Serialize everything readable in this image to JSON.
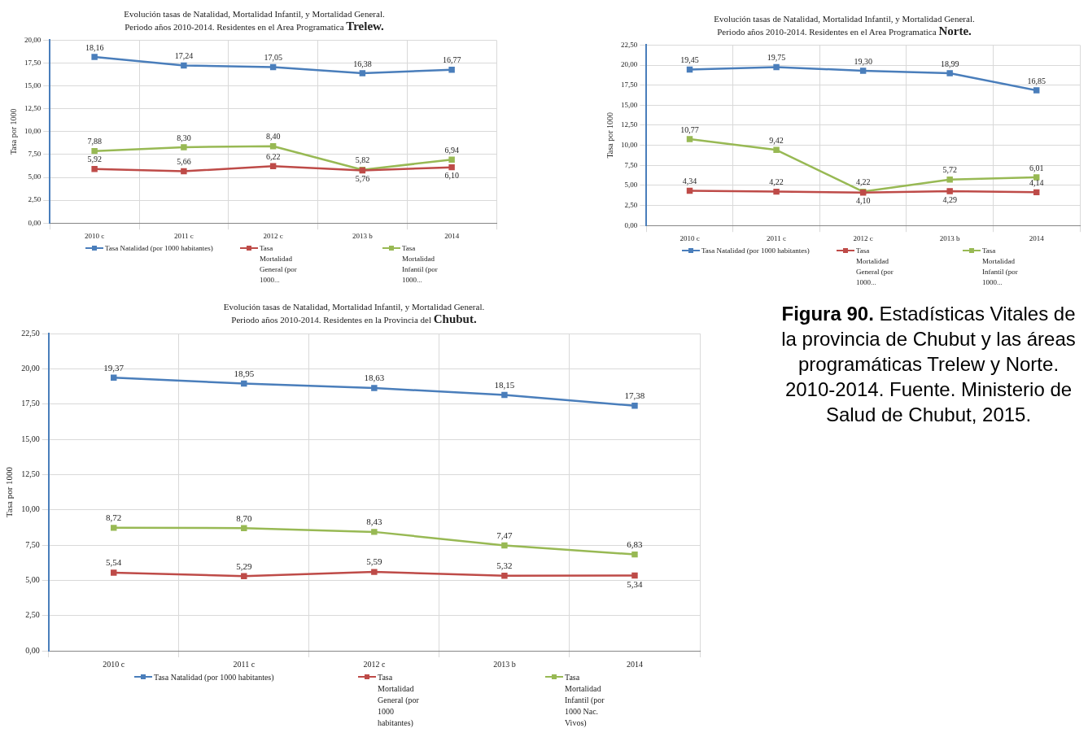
{
  "chart_data": [
    {
      "type": "line",
      "title": "Evolución tasas de Natalidad, Mortalidad Infantil, y Mortalidad General.",
      "subtitle": "Periodo años 2010-2014.  Residentes en el Area Programatica Trelew.",
      "ylabel": "Tasa por 1000",
      "categories": [
        "2010 c",
        "2011 c",
        "2012 c",
        "2013 b",
        "2014"
      ],
      "series": [
        {
          "name": "Tasa  Natalidad (por 1000 habitantes)",
          "color": "#4a7ebb",
          "values": [
            18.16,
            17.24,
            17.05,
            16.38,
            16.77
          ],
          "value_labels": [
            "18,16",
            "17,24",
            "17,05",
            "16,38",
            "16,77"
          ]
        },
        {
          "name": "Tasa Mortalidad General (por 1000...",
          "color": "#be4b48",
          "values": [
            5.92,
            5.66,
            6.22,
            5.76,
            6.1
          ],
          "value_labels": [
            "5,92",
            "5,66",
            "6,22",
            "5,76",
            "6,10"
          ]
        },
        {
          "name": "Tasa Mortalidad Infantil (por 1000...",
          "color": "#98b954",
          "values": [
            7.88,
            8.3,
            8.4,
            5.82,
            6.94
          ],
          "value_labels": [
            "7,88",
            "8,30",
            "8,40",
            "5,82",
            "6,94"
          ]
        }
      ],
      "ylim": [
        0,
        20
      ],
      "yticks": [
        {
          "value": 0,
          "label": "0,00"
        },
        {
          "value": 2.5,
          "label": "2,50"
        },
        {
          "value": 5,
          "label": "5,00"
        },
        {
          "value": 7.5,
          "label": "7,50"
        },
        {
          "value": 10,
          "label": "10,00"
        },
        {
          "value": 12.5,
          "label": "12,50"
        },
        {
          "value": 15,
          "label": "15,00"
        },
        {
          "value": 17.5,
          "label": "17,50"
        },
        {
          "value": 20,
          "label": "20,00"
        }
      ],
      "grid": true,
      "legend": "bottom",
      "marker": "square",
      "line_style": "solid"
    },
    {
      "type": "line",
      "title": "Evolución tasas de Natalidad, Mortalidad Infantil, y Mortalidad General.",
      "subtitle": "Periodo años 2010-2014.  Residentes en el Area Programatica Norte.",
      "ylabel": "Tasa por 1000",
      "categories": [
        "2010 c",
        "2011 c",
        "2012 c",
        "2013 b",
        "2014"
      ],
      "series": [
        {
          "name": "Tasa  Natalidad (por 1000 habitantes)",
          "color": "#4a7ebb",
          "values": [
            19.45,
            19.75,
            19.3,
            18.99,
            16.85
          ],
          "value_labels": [
            "19,45",
            "19,75",
            "19,30",
            "18,99",
            "16,85"
          ]
        },
        {
          "name": "Tasa Mortalidad General (por 1000...",
          "color": "#be4b48",
          "values": [
            4.34,
            4.22,
            4.1,
            4.29,
            4.14
          ],
          "value_labels": [
            "4,34",
            "4,22",
            "4,10",
            "4,29",
            "4,14"
          ]
        },
        {
          "name": "Tasa Mortalidad Infantil (por 1000...",
          "color": "#98b954",
          "values": [
            10.77,
            9.42,
            4.22,
            5.72,
            6.01
          ],
          "value_labels": [
            "10,77",
            "9,42",
            "4,22",
            "5,72",
            "6,01"
          ]
        }
      ],
      "ylim": [
        0,
        22.5
      ],
      "yticks": [
        {
          "value": 0,
          "label": "0,00"
        },
        {
          "value": 2.5,
          "label": "2,50"
        },
        {
          "value": 5,
          "label": "5,00"
        },
        {
          "value": 7.5,
          "label": "7,50"
        },
        {
          "value": 10,
          "label": "10,00"
        },
        {
          "value": 12.5,
          "label": "12,50"
        },
        {
          "value": 15,
          "label": "15,00"
        },
        {
          "value": 17.5,
          "label": "17,50"
        },
        {
          "value": 20,
          "label": "20,00"
        },
        {
          "value": 22.5,
          "label": "22,50"
        }
      ],
      "grid": true,
      "legend": "bottom",
      "marker": "square",
      "line_style": "solid"
    },
    {
      "type": "line",
      "title": "Evolución tasas de Natalidad, Mortalidad Infantil, y Mortalidad General.",
      "subtitle": "Periodo años 2010-2014.  Residentes en la Provincia del Chubut.",
      "ylabel": "Tasa por 1000",
      "categories": [
        "2010 c",
        "2011 c",
        "2012 c",
        "2013 b",
        "2014"
      ],
      "series": [
        {
          "name": "Tasa  Natalidad (por 1000 habitantes)",
          "color": "#4a7ebb",
          "values": [
            19.37,
            18.95,
            18.63,
            18.15,
            17.38
          ],
          "value_labels": [
            "19,37",
            "18,95",
            "18,63",
            "18,15",
            "17,38"
          ]
        },
        {
          "name": "Tasa Mortalidad General (por 1000 habitantes)",
          "color": "#be4b48",
          "values": [
            5.54,
            5.29,
            5.59,
            5.32,
            5.34
          ],
          "value_labels": [
            "5,54",
            "5,29",
            "5,59",
            "5,32",
            "5,34"
          ]
        },
        {
          "name": "Tasa Mortalidad Infantil (por 1000 Nac. Vivos)",
          "color": "#98b954",
          "values": [
            8.72,
            8.7,
            8.43,
            7.47,
            6.83
          ],
          "value_labels": [
            "8,72",
            "8,70",
            "8,43",
            "7,47",
            "6,83"
          ]
        }
      ],
      "ylim": [
        0,
        22.5
      ],
      "yticks": [
        {
          "value": 0,
          "label": "0,00"
        },
        {
          "value": 2.5,
          "label": "2,50"
        },
        {
          "value": 5,
          "label": "5,00"
        },
        {
          "value": 7.5,
          "label": "7,50"
        },
        {
          "value": 10,
          "label": "10,00"
        },
        {
          "value": 12.5,
          "label": "12,50"
        },
        {
          "value": 15,
          "label": "15,00"
        },
        {
          "value": 17.5,
          "label": "17,50"
        },
        {
          "value": 20,
          "label": "20,00"
        },
        {
          "value": 22.5,
          "label": "22,50"
        }
      ],
      "grid": true,
      "legend": "bottom",
      "marker": "square",
      "line_style": "solid"
    },
    {
      "type": "other",
      "title": "Figura 90.",
      "subtitle": "Estadísticas Vitales de la provincia de Chubut y las áreas programáticas Trelew y Norte. 2010-2014. Fuente. Ministerio de Salud de Chubut, 2015."
    }
  ]
}
